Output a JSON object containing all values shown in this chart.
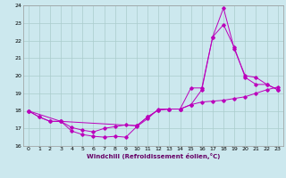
{
  "bg_color": "#cce8ee",
  "line_color": "#bb00bb",
  "grid_color": "#aacccc",
  "xlabel": "Windchill (Refroidissement éolien,°C)",
  "xlim": [
    -0.5,
    23.5
  ],
  "ylim": [
    16,
    24
  ],
  "yticks": [
    16,
    17,
    18,
    19,
    20,
    21,
    22,
    23,
    24
  ],
  "xticks": [
    0,
    1,
    2,
    3,
    4,
    5,
    6,
    7,
    8,
    9,
    10,
    11,
    12,
    13,
    14,
    15,
    16,
    17,
    18,
    19,
    20,
    21,
    22,
    23
  ],
  "line1_x": [
    0,
    1,
    2,
    3,
    4,
    5,
    6,
    7,
    8,
    9,
    10,
    11,
    12,
    13,
    14,
    15,
    16,
    17,
    18,
    19,
    20,
    21,
    22,
    23
  ],
  "line1_y": [
    18.0,
    17.65,
    17.4,
    17.4,
    16.85,
    16.65,
    16.55,
    16.5,
    16.55,
    16.5,
    17.1,
    17.55,
    18.1,
    18.1,
    18.1,
    18.35,
    18.5,
    18.55,
    18.6,
    18.7,
    18.8,
    19.0,
    19.2,
    19.35
  ],
  "line2_x": [
    0,
    1,
    2,
    3,
    4,
    5,
    6,
    7,
    8,
    9,
    10,
    11,
    12,
    13,
    14,
    15,
    16,
    17,
    18,
    19,
    20,
    21,
    22,
    23
  ],
  "line2_y": [
    18.0,
    17.65,
    17.4,
    17.4,
    17.05,
    16.9,
    16.8,
    17.0,
    17.1,
    17.2,
    17.15,
    17.65,
    18.05,
    18.1,
    18.1,
    18.35,
    19.2,
    22.2,
    23.85,
    21.5,
    20.0,
    19.9,
    19.5,
    19.2
  ],
  "line3_x": [
    0,
    3,
    10,
    11,
    12,
    13,
    14,
    15,
    16,
    17,
    18,
    19,
    20,
    21,
    22,
    23
  ],
  "line3_y": [
    18.0,
    17.4,
    17.15,
    17.65,
    18.05,
    18.1,
    18.1,
    19.3,
    19.3,
    22.2,
    22.9,
    21.6,
    19.9,
    19.5,
    19.5,
    19.2
  ]
}
